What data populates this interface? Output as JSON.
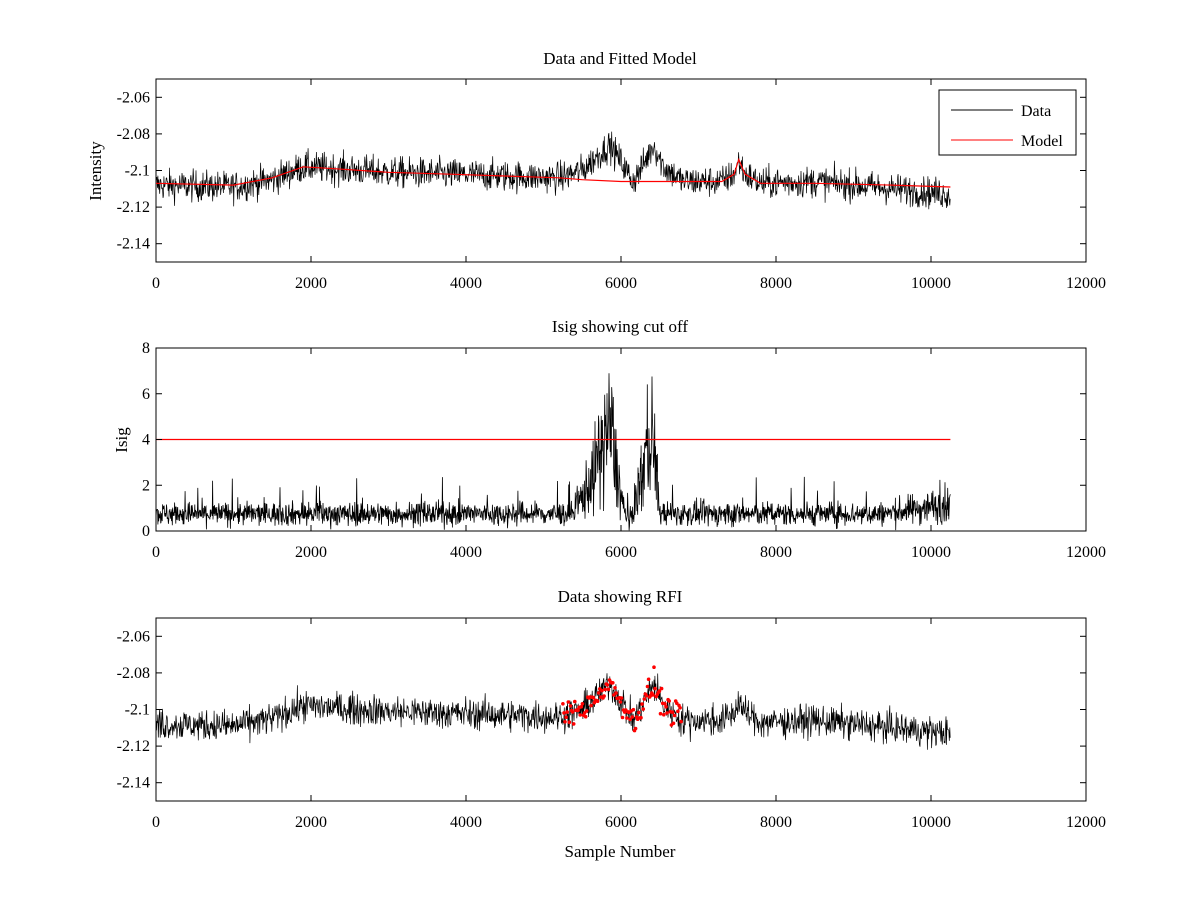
{
  "colors": {
    "data": "#000000",
    "model": "#ff0000",
    "rfi": "#ff0000",
    "axes": "#000000",
    "background": "#ffffff"
  },
  "chart_data": [
    {
      "id": "panel1",
      "type": "line",
      "title": "Data and Fitted Model",
      "xlabel": "",
      "ylabel": "Intensity",
      "xlim": [
        0,
        12000
      ],
      "ylim": [
        -2.15,
        -2.05
      ],
      "xticks": [
        0,
        2000,
        4000,
        6000,
        8000,
        10000,
        12000
      ],
      "xtick_labels": [
        "0",
        "2000",
        "4000",
        "6000",
        "8000",
        "10000",
        "12000"
      ],
      "yticks": [
        -2.06,
        -2.08,
        -2.1,
        -2.12,
        -2.14
      ],
      "ytick_labels": [
        "-2.06",
        "-2.08",
        "-2.1",
        "-2.12",
        "-2.14"
      ],
      "legend": {
        "location": "top-right",
        "entries": [
          "Data",
          "Model"
        ]
      },
      "series": [
        {
          "name": "Data",
          "color": "#000000",
          "noise": 0.0042,
          "x": [
            0,
            1000,
            1500,
            1900,
            2300,
            3000,
            3800,
            4500,
            5200,
            5500,
            5700,
            5850,
            6000,
            6150,
            6250,
            6420,
            6550,
            6800,
            7300,
            7460,
            7520,
            7600,
            7800,
            8500,
            9500,
            10250
          ],
          "y": [
            -2.108,
            -2.109,
            -2.105,
            -2.098,
            -2.099,
            -2.101,
            -2.102,
            -2.103,
            -2.104,
            -2.1,
            -2.092,
            -2.086,
            -2.095,
            -2.106,
            -2.1,
            -2.086,
            -2.098,
            -2.106,
            -2.106,
            -2.102,
            -2.095,
            -2.102,
            -2.107,
            -2.106,
            -2.11,
            -2.113
          ]
        },
        {
          "name": "Model",
          "color": "#ff0000",
          "x": [
            0,
            1000,
            1500,
            1900,
            2300,
            3000,
            3800,
            4500,
            5200,
            5500,
            6000,
            6500,
            7000,
            7300,
            7460,
            7520,
            7600,
            7800,
            8500,
            9500,
            10250
          ],
          "y": [
            -2.107,
            -2.108,
            -2.104,
            -2.098,
            -2.099,
            -2.101,
            -2.102,
            -2.103,
            -2.104,
            -2.105,
            -2.106,
            -2.106,
            -2.106,
            -2.106,
            -2.102,
            -2.094,
            -2.102,
            -2.107,
            -2.107,
            -2.108,
            -2.109
          ]
        }
      ]
    },
    {
      "id": "panel2",
      "type": "line",
      "title": "Isig showing cut off",
      "xlabel": "",
      "ylabel": "Isig",
      "xlim": [
        0,
        12000
      ],
      "ylim": [
        0,
        8
      ],
      "xticks": [
        0,
        2000,
        4000,
        6000,
        8000,
        10000,
        12000
      ],
      "xtick_labels": [
        "0",
        "2000",
        "4000",
        "6000",
        "8000",
        "10000",
        "12000"
      ],
      "yticks": [
        0,
        2,
        4,
        6,
        8
      ],
      "ytick_labels": [
        "0",
        "2",
        "4",
        "6",
        "8"
      ],
      "series": [
        {
          "name": "Isig",
          "color": "#000000",
          "x": [
            0,
            5400,
            5500,
            5650,
            5850,
            6000,
            6100,
            6200,
            6400,
            6500,
            6600,
            9400,
            10250
          ],
          "y": [
            0.75,
            0.75,
            1.5,
            2.5,
            4.8,
            1.5,
            0.2,
            1.5,
            4.5,
            0.8,
            0.75,
            0.75,
            1.2
          ]
        },
        {
          "name": "Cut off",
          "color": "#ff0000",
          "x": [
            0,
            10250
          ],
          "y": [
            4,
            4
          ]
        }
      ]
    },
    {
      "id": "panel3",
      "type": "line",
      "title": "Data showing RFI",
      "xlabel": "Sample Number",
      "ylabel": "",
      "xlim": [
        0,
        12000
      ],
      "ylim": [
        -2.15,
        -2.05
      ],
      "xticks": [
        0,
        2000,
        4000,
        6000,
        8000,
        10000,
        12000
      ],
      "xtick_labels": [
        "0",
        "2000",
        "4000",
        "6000",
        "8000",
        "10000",
        "12000"
      ],
      "yticks": [
        -2.06,
        -2.08,
        -2.1,
        -2.12,
        -2.14
      ],
      "ytick_labels": [
        "-2.06",
        "-2.08",
        "-2.1",
        "-2.12",
        "-2.14"
      ],
      "series": [
        {
          "name": "Data",
          "color": "#000000",
          "noise": 0.0042,
          "x": [
            0,
            1000,
            1500,
            1900,
            2300,
            3000,
            3800,
            4500,
            5200,
            5500,
            5700,
            5850,
            6000,
            6150,
            6250,
            6420,
            6550,
            6800,
            7300,
            7460,
            7520,
            7600,
            7800,
            8500,
            9500,
            10250
          ],
          "y": [
            -2.108,
            -2.109,
            -2.105,
            -2.098,
            -2.099,
            -2.101,
            -2.102,
            -2.103,
            -2.104,
            -2.1,
            -2.092,
            -2.086,
            -2.095,
            -2.106,
            -2.1,
            -2.086,
            -2.098,
            -2.106,
            -2.106,
            -2.102,
            -2.095,
            -2.102,
            -2.107,
            -2.106,
            -2.11,
            -2.113
          ]
        },
        {
          "name": "RFI",
          "color": "#ff0000",
          "marker": "dot",
          "range": [
            5250,
            6780
          ]
        }
      ]
    }
  ]
}
